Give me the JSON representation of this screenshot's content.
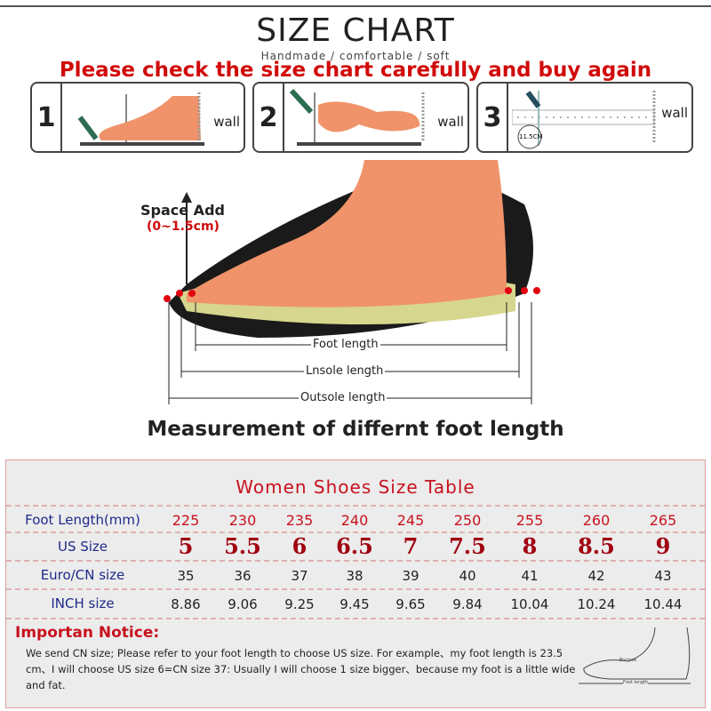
{
  "header": {
    "title": "SIZE CHART",
    "subtitle": "Handmade / comfortable / soft",
    "warning": "Please check the size chart carefully and buy again"
  },
  "steps": [
    {
      "number": "1",
      "wall": "wall"
    },
    {
      "number": "2",
      "wall": "wall"
    },
    {
      "number": "3",
      "wall": "wall",
      "circle": "11.5CM"
    }
  ],
  "diagram": {
    "space_add": "Space Add",
    "space_range": "(0~1.5cm)",
    "foot_length": "Foot length",
    "insole_length": "Lnsole length",
    "outsole_length": "Outsole length",
    "caption": "Measurement of differnt foot length"
  },
  "table": {
    "title": "Women Shoes Size Table",
    "rows": [
      {
        "label": "Foot Length(mm)",
        "values": [
          "225",
          "230",
          "235",
          "240",
          "245",
          "250",
          "255",
          "260",
          "265"
        ]
      },
      {
        "label": "US Size",
        "values": [
          "5",
          "5.5",
          "6",
          "6.5",
          "7",
          "7.5",
          "8",
          "8.5",
          "9"
        ]
      },
      {
        "label": "Euro/CN size",
        "values": [
          "35",
          "36",
          "37",
          "38",
          "39",
          "40",
          "41",
          "42",
          "43"
        ]
      },
      {
        "label": "INCH size",
        "values": [
          "8.86",
          "9.06",
          "9.25",
          "9.45",
          "9.65",
          "9.84",
          "10.04",
          "10.24",
          "10.44"
        ]
      }
    ]
  },
  "notice": {
    "title": "Importan Notice:",
    "text": "We send CN size; Please refer to your foot length to choose US size. For example、my foot length is 23.5 cm、I will choose US size 6=CN size 37: Usually I will choose 1 size bigger、because my foot is a little wide and fat.",
    "figure_labels": [
      "Enclose",
      "Foot length"
    ]
  },
  "colors": {
    "red": "#d10a0a",
    "navy": "#1e2a8a",
    "foot": "#f0936a"
  }
}
